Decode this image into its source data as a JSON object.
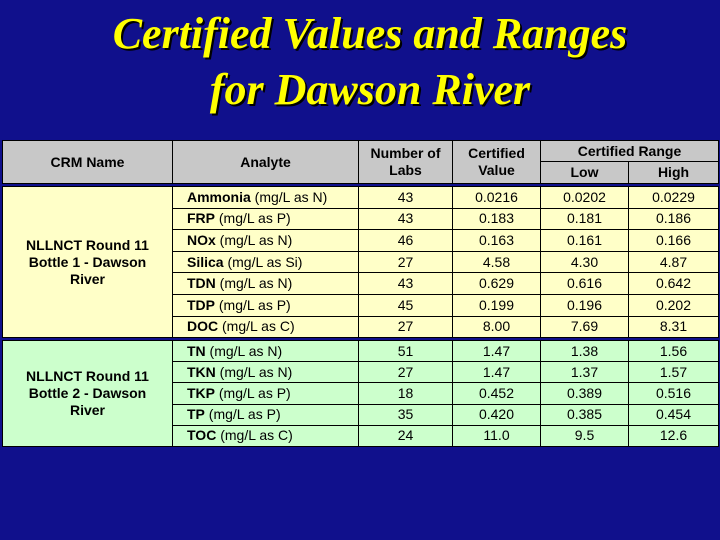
{
  "title": {
    "line1": "Certified Values and Ranges",
    "line2": "for Dawson River"
  },
  "table": {
    "headers": {
      "crm_name": "CRM Name",
      "analyte": "Analyte",
      "labs": "Number of Labs",
      "value": "Certified Value",
      "range": "Certified Range",
      "low": "Low",
      "high": "High"
    },
    "groups": [
      {
        "crm_name": "NLLNCT Round 11 Bottle 1 - Dawson River",
        "rows": [
          {
            "name": "Ammonia",
            "unit": "(mg/L as N)",
            "labs": "43",
            "value": "0.0216",
            "low": "0.0202",
            "high": "0.0229"
          },
          {
            "name": "FRP",
            "unit": "(mg/L as P)",
            "labs": "43",
            "value": "0.183",
            "low": "0.181",
            "high": "0.186"
          },
          {
            "name": "NOx",
            "unit": "(mg/L as N)",
            "labs": "46",
            "value": "0.163",
            "low": "0.161",
            "high": "0.166"
          },
          {
            "name": "Silica",
            "unit": "(mg/L as Si)",
            "labs": "27",
            "value": "4.58",
            "low": "4.30",
            "high": "4.87"
          },
          {
            "name": "TDN",
            "unit": "(mg/L as N)",
            "labs": "43",
            "value": "0.629",
            "low": "0.616",
            "high": "0.642"
          },
          {
            "name": "TDP",
            "unit": "(mg/L as P)",
            "labs": "45",
            "value": "0.199",
            "low": "0.196",
            "high": "0.202"
          },
          {
            "name": "DOC",
            "unit": "(mg/L as C)",
            "labs": "27",
            "value": "8.00",
            "low": "7.69",
            "high": "8.31"
          }
        ]
      },
      {
        "crm_name": "NLLNCT Round 11 Bottle 2 - Dawson River",
        "rows": [
          {
            "name": "TN",
            "unit": "(mg/L as N)",
            "labs": "51",
            "value": "1.47",
            "low": "1.38",
            "high": "1.56"
          },
          {
            "name": "TKN",
            "unit": "(mg/L as N)",
            "labs": "27",
            "value": "1.47",
            "low": "1.37",
            "high": "1.57"
          },
          {
            "name": "TKP",
            "unit": "(mg/L as P)",
            "labs": "18",
            "value": "0.452",
            "low": "0.389",
            "high": "0.516"
          },
          {
            "name": "TP",
            "unit": "(mg/L as P)",
            "labs": "35",
            "value": "0.420",
            "low": "0.385",
            "high": "0.454"
          },
          {
            "name": "TOC",
            "unit": "(mg/L as C)",
            "labs": "24",
            "value": "11.0",
            "low": "9.5",
            "high": "12.6"
          }
        ]
      }
    ]
  }
}
